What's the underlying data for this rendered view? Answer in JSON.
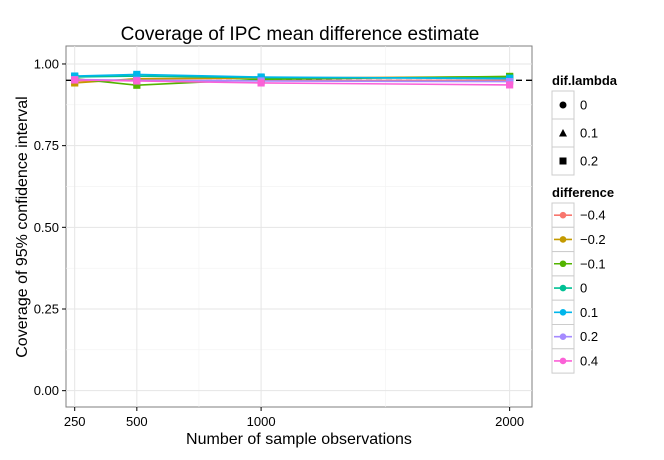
{
  "chart_data": {
    "type": "line",
    "title": "Coverage of IPC mean difference estimate",
    "xlabel": "Number of sample observations",
    "ylabel": "Coverage of 95% confidence interval",
    "xlim": [
      215,
      2090
    ],
    "ylim": [
      -0.05,
      1.055
    ],
    "x_ticks": [
      250,
      500,
      1000,
      2000
    ],
    "x_tick_labels": [
      "250",
      "500",
      "1000",
      "2000"
    ],
    "x_minor": [
      750,
      1500
    ],
    "y_ticks": [
      0.0,
      0.25,
      0.5,
      0.75,
      1.0
    ],
    "y_tick_labels": [
      "0.00",
      "0.25",
      "0.50",
      "0.75",
      "1.00"
    ],
    "reference_line": {
      "y": 0.95,
      "style": "dashed",
      "color": "#000000"
    },
    "x": [
      250,
      500,
      1000,
      2000
    ],
    "series": [
      {
        "name": "-0.4",
        "color": "#F8766D",
        "values": [
          0.948,
          0.951,
          0.949,
          0.95
        ]
      },
      {
        "name": "-0.2",
        "color": "#C49A00",
        "values": [
          0.942,
          0.955,
          0.957,
          0.961
        ]
      },
      {
        "name": "-0.1",
        "color": "#53B400",
        "values": [
          0.955,
          0.935,
          0.953,
          0.962
        ]
      },
      {
        "name": "0",
        "color": "#00C094",
        "values": [
          0.96,
          0.963,
          0.958,
          0.957
        ]
      },
      {
        "name": "0.1",
        "color": "#00B6EB",
        "values": [
          0.963,
          0.968,
          0.96,
          0.955
        ]
      },
      {
        "name": "0.2",
        "color": "#A58AFF",
        "values": [
          0.952,
          0.95,
          0.948,
          0.946
        ]
      },
      {
        "name": "0.4",
        "color": "#FB61D7",
        "values": [
          0.951,
          0.948,
          0.942,
          0.936
        ]
      }
    ],
    "legends": {
      "shape": {
        "title": "dif.lambda",
        "items": [
          {
            "label": "0",
            "shape": "circle"
          },
          {
            "label": "0.1",
            "shape": "triangle"
          },
          {
            "label": "0.2",
            "shape": "square"
          }
        ]
      },
      "color": {
        "title": "difference",
        "items": [
          "−0.4",
          "−0.2",
          "−0.1",
          "0",
          "0.1",
          "0.2",
          "0.4"
        ]
      }
    }
  }
}
